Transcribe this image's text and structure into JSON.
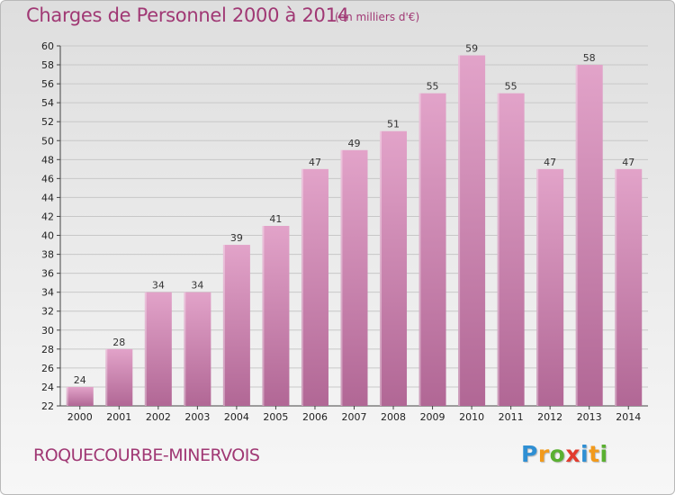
{
  "chart_data": {
    "type": "bar",
    "title": "Charges de Personnel 2000 à 2014",
    "subtitle": "(en milliers d'€)",
    "xlabel": "",
    "ylabel": "",
    "categories": [
      "2000",
      "2001",
      "2002",
      "2003",
      "2004",
      "2005",
      "2006",
      "2007",
      "2008",
      "2009",
      "2010",
      "2011",
      "2012",
      "2013",
      "2014"
    ],
    "values": [
      24,
      28,
      34,
      34,
      39,
      41,
      47,
      49,
      51,
      55,
      59,
      55,
      47,
      58,
      47
    ],
    "ylim": [
      22,
      60
    ],
    "yticks": [
      22,
      24,
      26,
      28,
      30,
      32,
      34,
      36,
      38,
      40,
      42,
      44,
      46,
      48,
      50,
      52,
      54,
      56,
      58,
      60
    ],
    "grid": true,
    "bar_color": "#e2a3c9",
    "bar_color_dark": "#b16795"
  },
  "footer": {
    "city": "ROQUECOURBE-MINERVOIS",
    "logo_letters": [
      {
        "char": "P",
        "color": "#2f8fd3"
      },
      {
        "char": "r",
        "color": "#f29a1b"
      },
      {
        "char": "o",
        "color": "#5ab031"
      },
      {
        "char": "x",
        "color": "#e23b2e"
      },
      {
        "char": "i",
        "color": "#2f8fd3"
      },
      {
        "char": "t",
        "color": "#f29a1b"
      },
      {
        "char": "i",
        "color": "#5ab031"
      }
    ]
  }
}
